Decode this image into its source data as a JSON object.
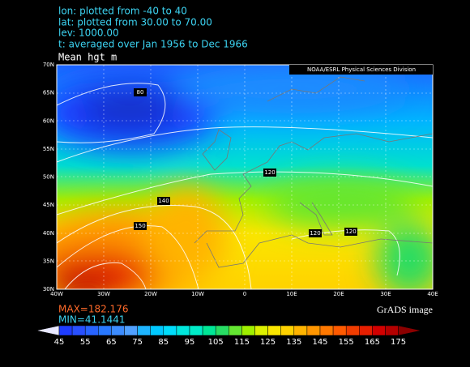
{
  "header": {
    "lines": [
      "lon: plotted from -40 to 40",
      "lat: plotted from 30.00 to 70.00",
      "lev: 1000.00",
      "t: averaged over Jan 1956 to Dec 1966"
    ]
  },
  "map": {
    "title": "Mean hgt m",
    "credit": "NOAA/ESRL Physical Sciences Division",
    "lat_labels": [
      "70N",
      "65N",
      "60N",
      "55N",
      "50N",
      "45N",
      "40N",
      "35N",
      "30N"
    ],
    "lon_labels": [
      "40W",
      "30W",
      "20W",
      "10W",
      "0",
      "10E",
      "20E",
      "30E",
      "40E"
    ],
    "contour_labels": [
      "80",
      "120",
      "140",
      "150",
      "120",
      "120"
    ]
  },
  "stats": {
    "max": "MAX=182.176",
    "min": "MIN=41.1441"
  },
  "footer": "GrADS image",
  "colorbar": {
    "labels": [
      45,
      55,
      65,
      75,
      85,
      95,
      105,
      115,
      125,
      135,
      145,
      155,
      165,
      175
    ],
    "colors": [
      "#e8e8ff",
      "#1e3cff",
      "#2850ff",
      "#2864ff",
      "#2878ff",
      "#3c8cff",
      "#50a0ff",
      "#1eb4ff",
      "#00c8ff",
      "#00dcfa",
      "#00e6dc",
      "#00ebc8",
      "#00e696",
      "#28dc64",
      "#64e632",
      "#a0f000",
      "#dcf000",
      "#fae600",
      "#ffd200",
      "#ffb400",
      "#ff9600",
      "#ff7800",
      "#ff5a00",
      "#f03c00",
      "#e61e00",
      "#d20000",
      "#b40000",
      "#8c0000"
    ]
  }
}
